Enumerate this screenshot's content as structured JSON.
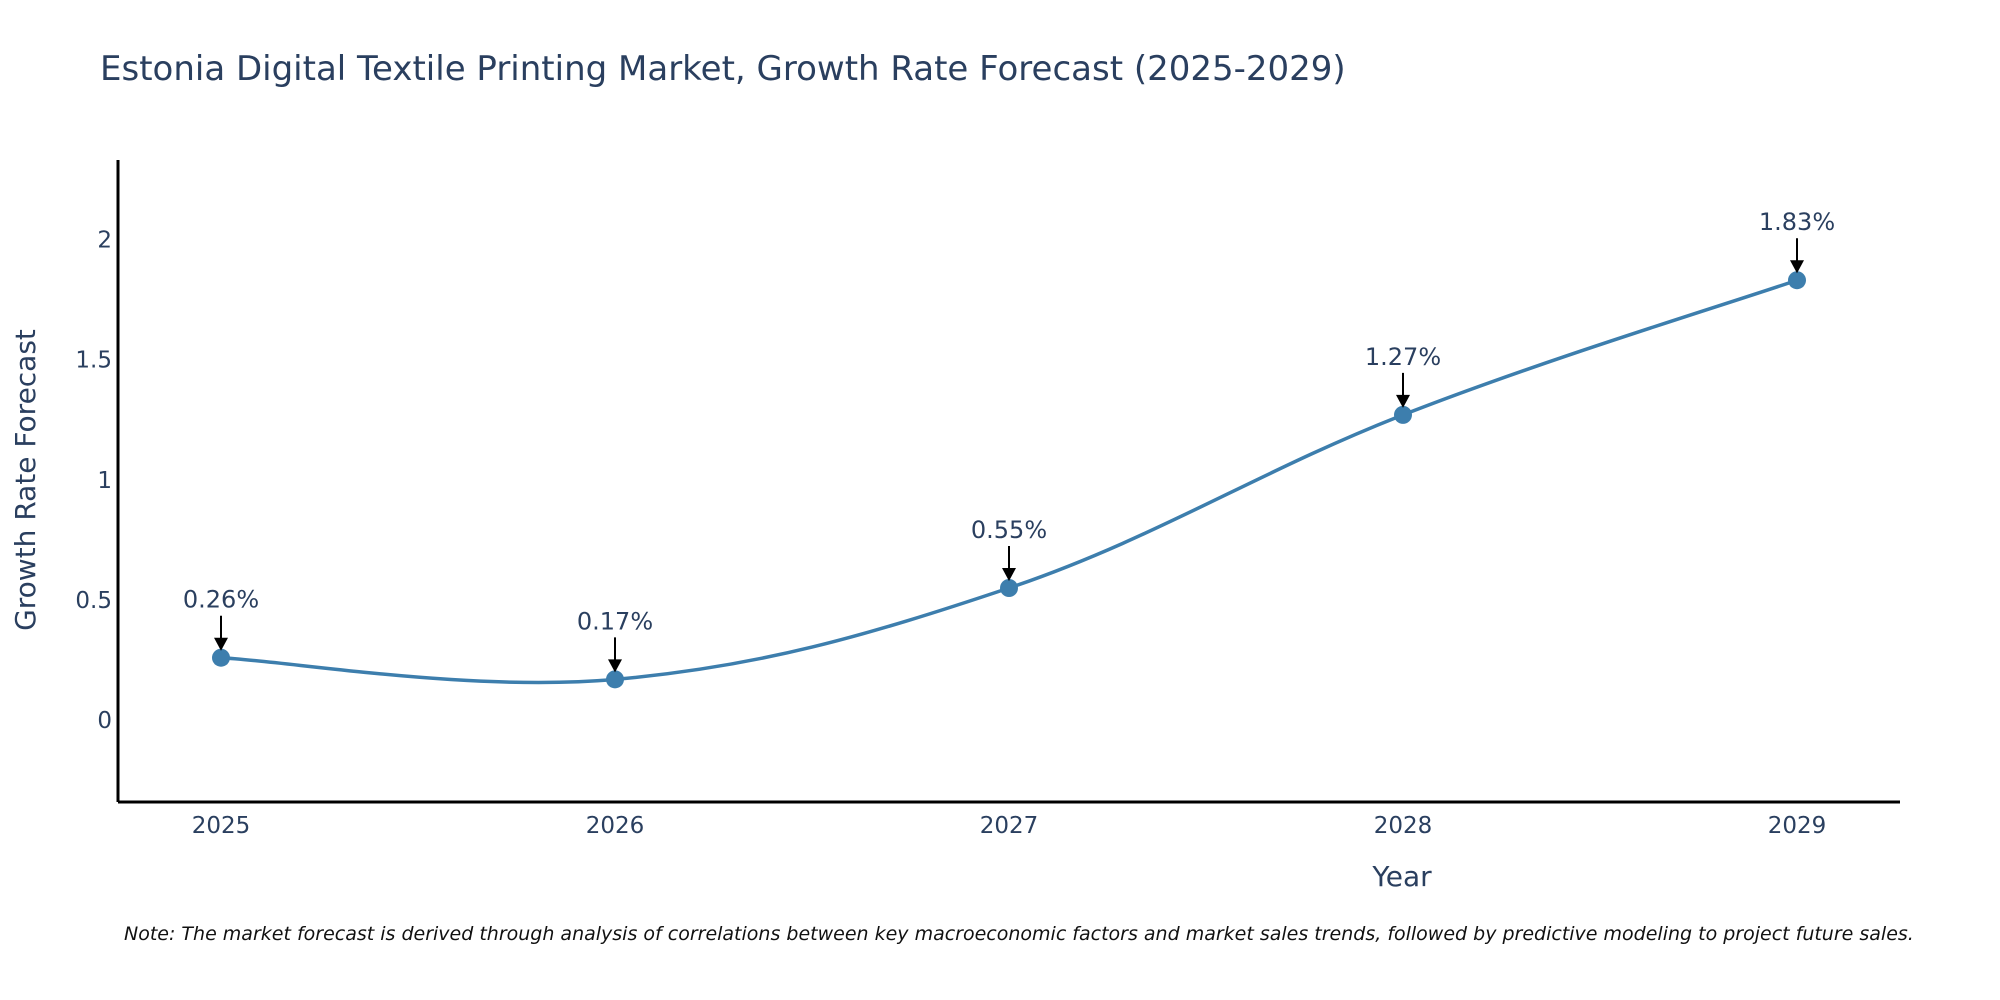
{
  "chart_data": {
    "type": "line",
    "title": "Estonia Digital Textile Printing Market, Growth Rate Forecast (2025-2029)",
    "xlabel": "Year",
    "ylabel": "Growth Rate Forecast",
    "categories": [
      "2025",
      "2026",
      "2027",
      "2028",
      "2029"
    ],
    "series": [
      {
        "name": "Growth Rate Forecast",
        "values": [
          0.26,
          0.17,
          0.55,
          1.27,
          1.83
        ],
        "labels": [
          "0.26%",
          "0.17%",
          "0.55%",
          "1.27%",
          "1.83%"
        ],
        "color": "#3d7ead"
      }
    ],
    "ylim": [
      -0.34,
      2.33
    ],
    "yticks": [
      0,
      0.5,
      1,
      1.5,
      2
    ],
    "ytick_labels": [
      "0",
      "0.5",
      "1",
      "1.5",
      "2"
    ],
    "grid": false,
    "axis_color": "#000000"
  },
  "note": "Note: The market forecast is derived through analysis of correlations between key macroeconomic factors and market sales trends, followed by predictive modeling to project future sales."
}
